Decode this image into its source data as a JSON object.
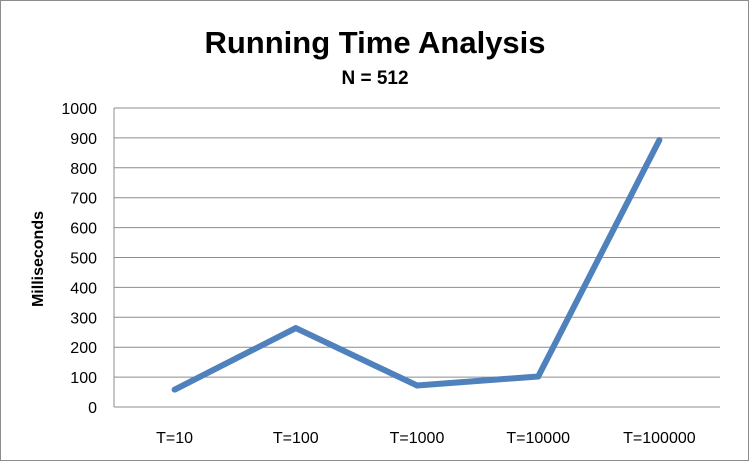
{
  "chart_data": {
    "type": "line",
    "title": "Running Time Analysis",
    "subtitle": "N = 512",
    "xlabel": "",
    "ylabel": "Milliseconds",
    "categories": [
      "T=10",
      "T=100",
      "T=1000",
      "T=10000",
      "T=100000"
    ],
    "series": [
      {
        "values": [
          58,
          264,
          72,
          102,
          893
        ],
        "color": "#4f81bd"
      }
    ],
    "ylim": [
      0,
      1000
    ],
    "yticks": [
      "0",
      "100",
      "200",
      "300",
      "400",
      "500",
      "600",
      "700",
      "800",
      "900",
      "1000"
    ],
    "grid": true,
    "legend": "none"
  }
}
